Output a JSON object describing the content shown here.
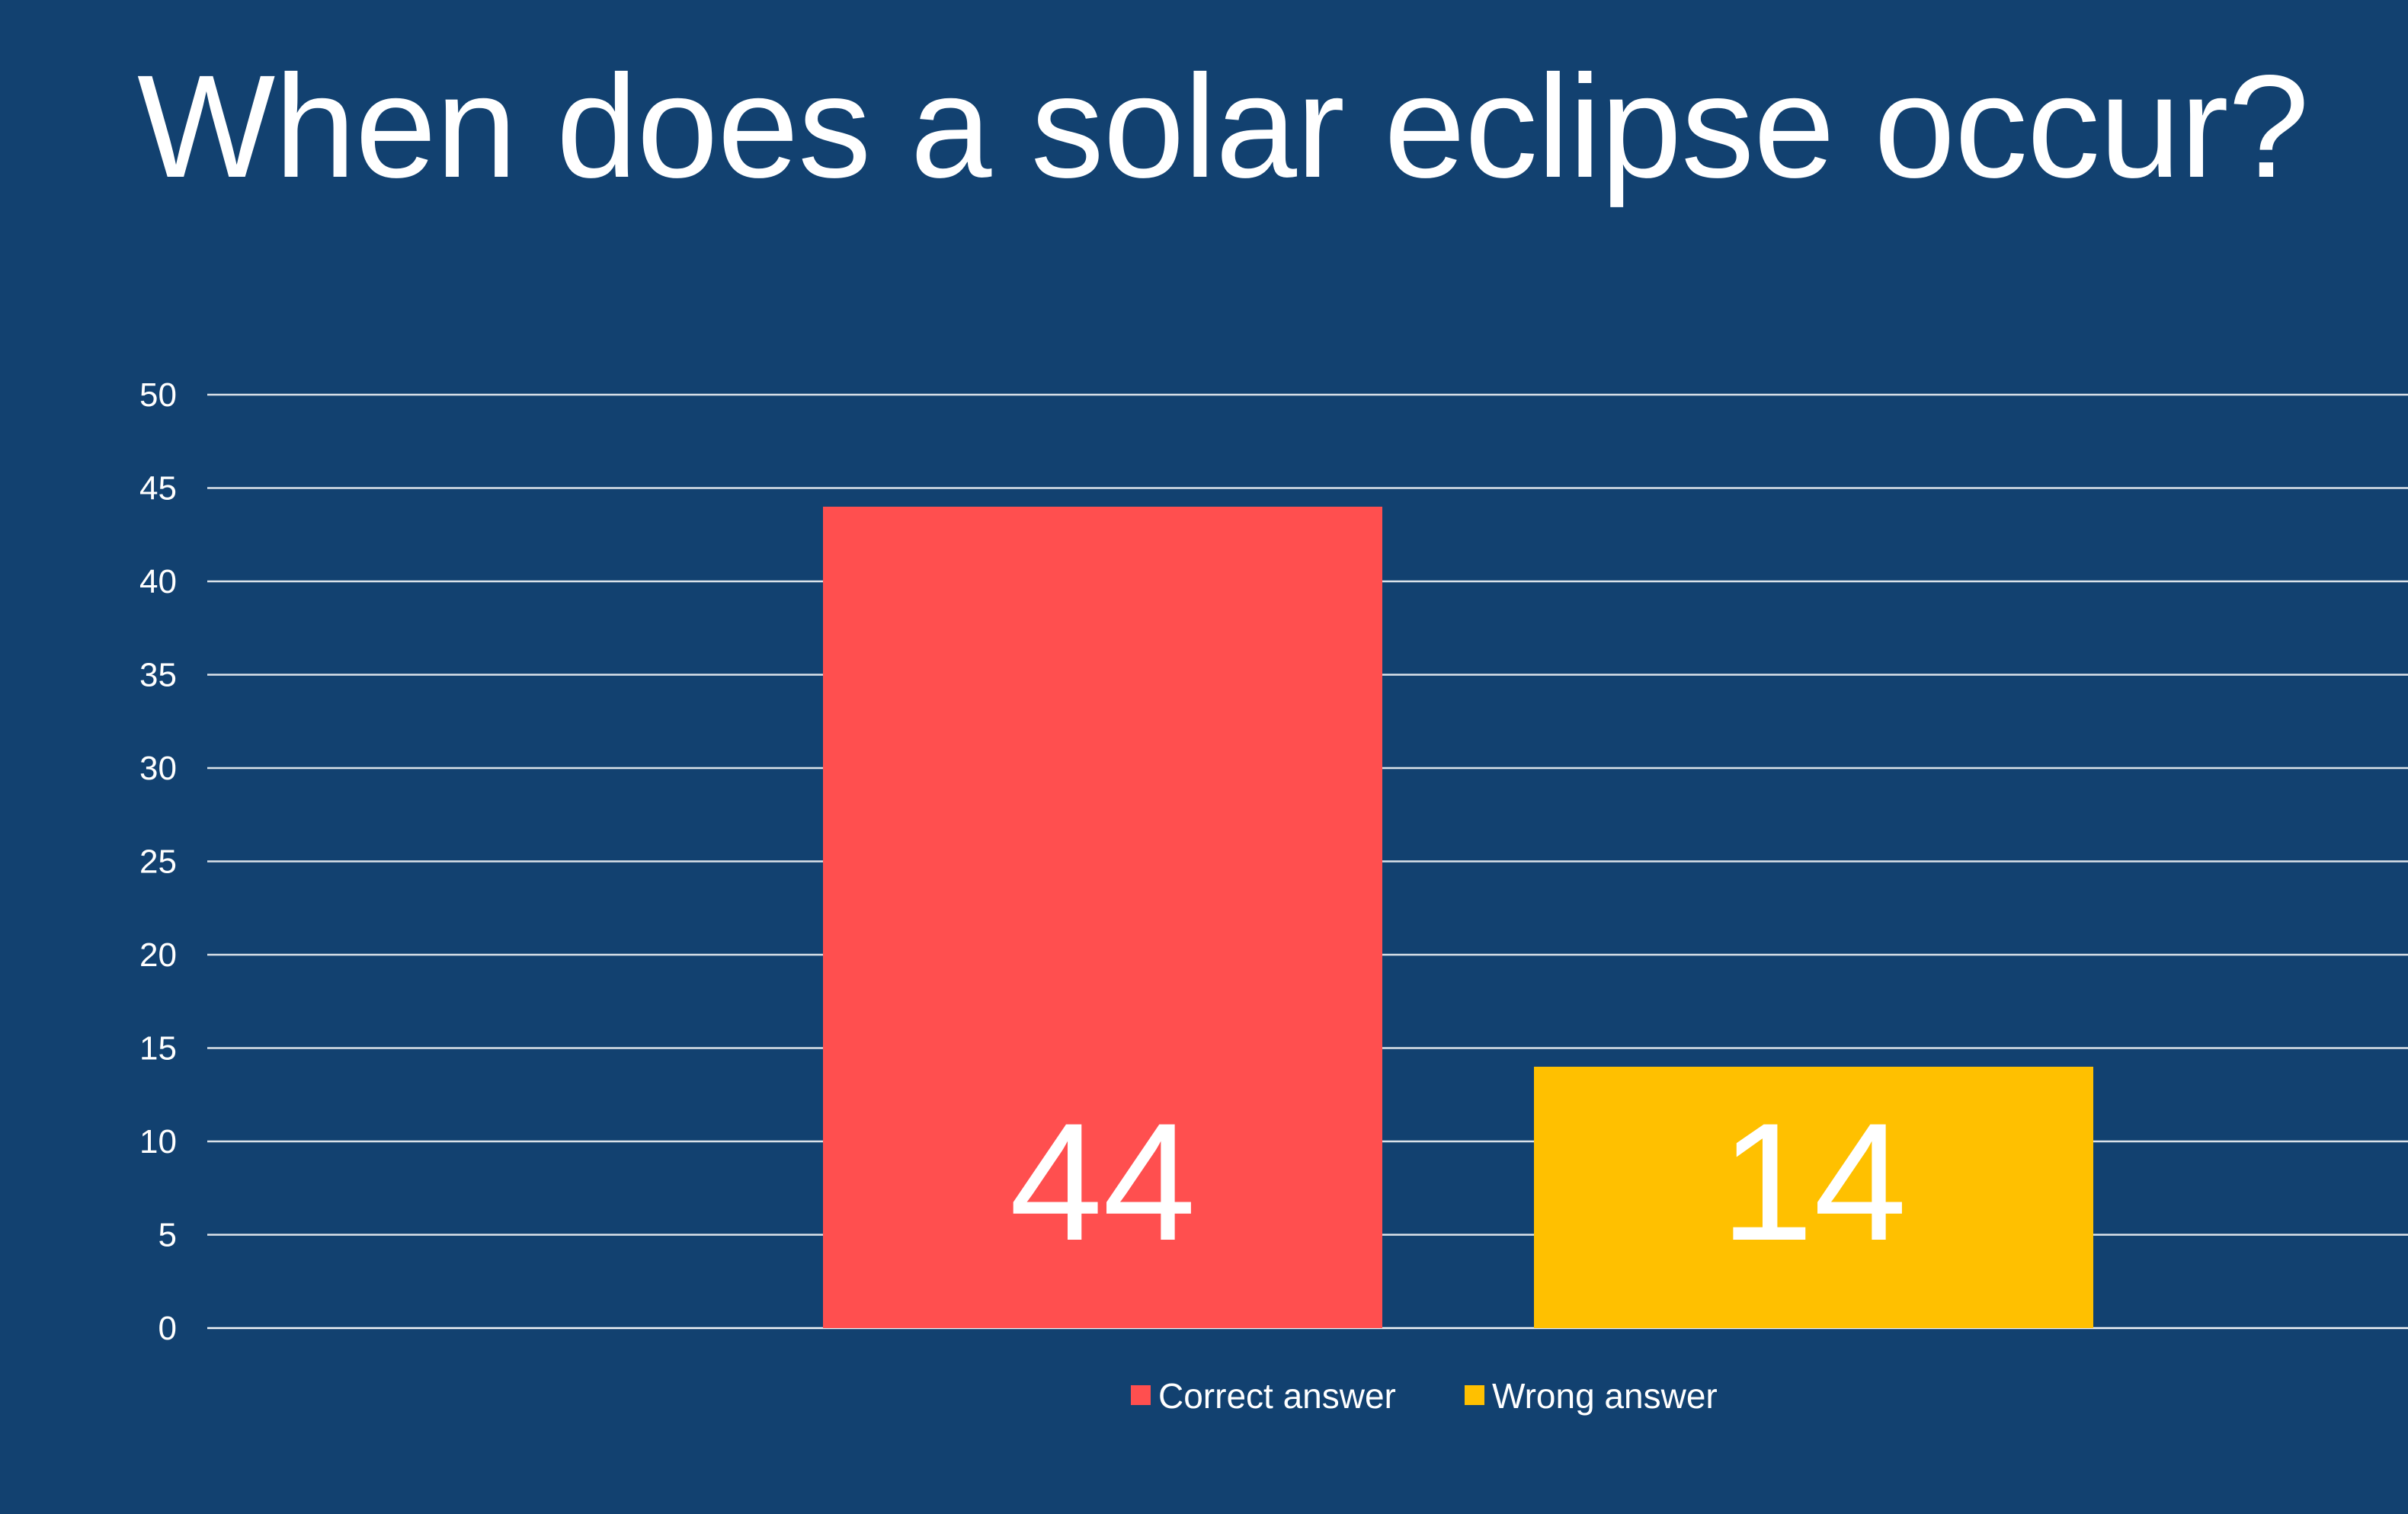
{
  "chart_data": {
    "type": "bar",
    "title": "When does a solar eclipse occur?",
    "categories": [
      "Correct answer",
      "Wrong answer"
    ],
    "values": [
      44,
      14
    ],
    "data_labels": [
      "44",
      "14"
    ],
    "colors": [
      "#ff4f4f",
      "#ffc000"
    ],
    "ylim": [
      0,
      50
    ],
    "yticks": [
      0,
      5,
      10,
      15,
      20,
      25,
      30,
      35,
      40,
      45,
      50
    ],
    "grid": true,
    "legend": {
      "position": "bottom",
      "entries": [
        "Correct answer",
        "Wrong answer"
      ]
    },
    "background_color": "#124170",
    "text_color": "#ffffff"
  }
}
